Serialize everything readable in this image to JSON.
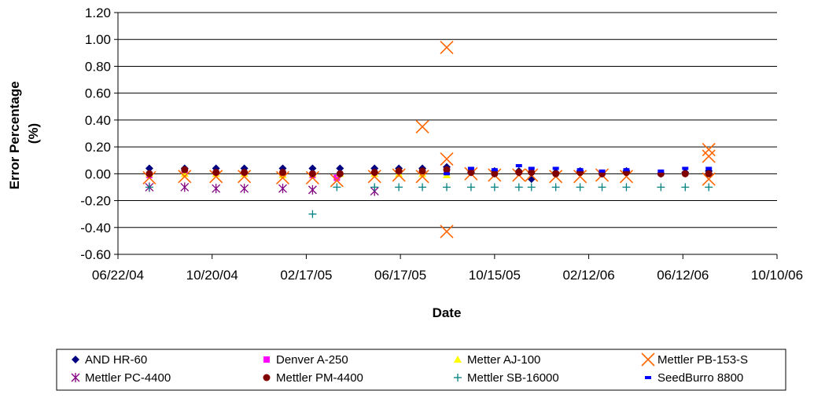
{
  "chart_data": {
    "type": "scatter",
    "title": "",
    "xlabel": "Date",
    "ylabel": "Error Percentage (%)",
    "ylabel_lines": [
      "Error Percentage",
      "(%)"
    ],
    "x_ticks": [
      "06/22/04",
      "10/20/04",
      "02/17/05",
      "06/17/05",
      "10/15/05",
      "02/12/06",
      "06/12/06",
      "10/10/06"
    ],
    "xlim": [
      "06/22/04",
      "10/10/06"
    ],
    "y_ticks": [
      "1.20",
      "1.00",
      "0.80",
      "0.60",
      "0.40",
      "0.20",
      "0.00",
      "-0.20",
      "-0.40",
      "-0.60"
    ],
    "ylim": [
      -0.6,
      1.2
    ],
    "grid": "horizontal",
    "legend_position": "bottom",
    "series": [
      {
        "name": "AND HR-60",
        "marker": "diamond",
        "color": "#000080",
        "points": [
          [
            "08/01/04",
            0.04
          ],
          [
            "09/15/04",
            0.04
          ],
          [
            "10/25/04",
            0.04
          ],
          [
            "11/30/04",
            0.04
          ],
          [
            "01/18/05",
            0.04
          ],
          [
            "02/25/05",
            0.04
          ],
          [
            "04/01/05",
            0.04
          ],
          [
            "05/15/05",
            0.04
          ],
          [
            "06/15/05",
            0.04
          ],
          [
            "07/15/05",
            0.04
          ],
          [
            "08/15/05",
            0.05
          ],
          [
            "09/15/05",
            0.01
          ],
          [
            "10/15/05",
            0.02
          ],
          [
            "11/15/05",
            0.02
          ],
          [
            "12/01/05",
            -0.04
          ],
          [
            "01/01/06",
            0.01
          ],
          [
            "02/01/06",
            0.02
          ],
          [
            "03/01/06",
            0.0
          ],
          [
            "04/01/06",
            0.02
          ],
          [
            "05/15/06",
            0.0
          ],
          [
            "06/15/06",
            0.01
          ],
          [
            "07/15/06",
            0.02
          ]
        ]
      },
      {
        "name": "Denver A-250",
        "marker": "square",
        "color": "#ff00ff",
        "points": [
          [
            "08/01/04",
            -0.01
          ],
          [
            "09/15/04",
            0.02
          ],
          [
            "10/25/04",
            0.0
          ],
          [
            "11/30/04",
            0.0
          ],
          [
            "01/18/05",
            0.0
          ],
          [
            "02/25/05",
            -0.01
          ],
          [
            "03/28/05",
            -0.03
          ]
        ]
      },
      {
        "name": "Metter AJ-100",
        "marker": "triangle",
        "color": "#ffff00",
        "points": [
          [
            "08/01/04",
            0.0
          ],
          [
            "09/15/04",
            0.0
          ],
          [
            "10/25/04",
            0.0
          ],
          [
            "11/30/04",
            0.0
          ],
          [
            "01/18/05",
            -0.01
          ],
          [
            "02/25/05",
            0.0
          ],
          [
            "04/01/05",
            0.0
          ],
          [
            "05/15/05",
            0.0
          ],
          [
            "06/15/05",
            0.0
          ],
          [
            "07/15/05",
            0.0
          ],
          [
            "08/15/05",
            -0.01
          ]
        ]
      },
      {
        "name": "Mettler PB-153-S",
        "marker": "x",
        "color": "#ff6600",
        "points": [
          [
            "08/01/04",
            -0.03
          ],
          [
            "09/15/04",
            -0.02
          ],
          [
            "10/25/04",
            -0.02
          ],
          [
            "11/30/04",
            -0.02
          ],
          [
            "01/18/05",
            -0.03
          ],
          [
            "02/25/05",
            -0.03
          ],
          [
            "03/28/05",
            -0.05
          ],
          [
            "05/15/05",
            -0.02
          ],
          [
            "06/15/05",
            -0.01
          ],
          [
            "07/15/05",
            0.35
          ],
          [
            "07/15/05",
            -0.02
          ],
          [
            "08/15/05",
            0.94
          ],
          [
            "08/15/05",
            0.11
          ],
          [
            "08/15/05",
            -0.43
          ],
          [
            "09/15/05",
            0.0
          ],
          [
            "10/15/05",
            -0.01
          ],
          [
            "11/15/05",
            -0.01
          ],
          [
            "12/01/05",
            -0.01
          ],
          [
            "01/01/06",
            -0.02
          ],
          [
            "02/01/06",
            -0.02
          ],
          [
            "03/01/06",
            -0.01
          ],
          [
            "04/01/06",
            -0.02
          ],
          [
            "07/15/06",
            0.18
          ],
          [
            "07/15/06",
            0.13
          ],
          [
            "07/15/06",
            -0.04
          ]
        ]
      },
      {
        "name": "Mettler PC-4400",
        "marker": "asterisk",
        "color": "#800080",
        "points": [
          [
            "08/01/04",
            -0.1
          ],
          [
            "09/15/04",
            -0.1
          ],
          [
            "10/25/04",
            -0.11
          ],
          [
            "11/30/04",
            -0.11
          ],
          [
            "01/18/05",
            -0.11
          ],
          [
            "02/25/05",
            -0.12
          ],
          [
            "05/15/05",
            -0.13
          ]
        ]
      },
      {
        "name": "Mettler PM-4400",
        "marker": "circle",
        "color": "#800000",
        "points": [
          [
            "08/01/04",
            0.0
          ],
          [
            "09/15/04",
            0.03
          ],
          [
            "10/25/04",
            0.01
          ],
          [
            "11/30/04",
            0.01
          ],
          [
            "01/18/05",
            0.01
          ],
          [
            "02/25/05",
            0.0
          ],
          [
            "04/01/05",
            0.0
          ],
          [
            "05/15/05",
            0.01
          ],
          [
            "06/15/05",
            0.02
          ],
          [
            "07/15/05",
            0.02
          ],
          [
            "08/15/05",
            0.03
          ],
          [
            "09/15/05",
            0.01
          ],
          [
            "10/15/05",
            0.0
          ],
          [
            "11/15/05",
            0.01
          ],
          [
            "12/01/05",
            0.01
          ],
          [
            "01/01/06",
            0.0
          ],
          [
            "02/01/06",
            0.01
          ],
          [
            "03/01/06",
            0.0
          ],
          [
            "04/01/06",
            0.01
          ],
          [
            "05/15/06",
            0.0
          ],
          [
            "06/15/06",
            0.0
          ],
          [
            "07/15/06",
            0.0
          ]
        ]
      },
      {
        "name": "Mettler SB-16000",
        "marker": "plus",
        "color": "#008080",
        "points": [
          [
            "08/01/04",
            -0.1
          ],
          [
            "02/25/05",
            -0.3
          ],
          [
            "03/28/05",
            -0.1
          ],
          [
            "05/15/05",
            -0.1
          ],
          [
            "06/15/05",
            -0.1
          ],
          [
            "07/15/05",
            -0.1
          ],
          [
            "08/15/05",
            -0.1
          ],
          [
            "09/15/05",
            -0.1
          ],
          [
            "10/15/05",
            -0.1
          ],
          [
            "11/15/05",
            -0.1
          ],
          [
            "12/01/05",
            -0.1
          ],
          [
            "01/01/06",
            -0.1
          ],
          [
            "02/01/06",
            -0.1
          ],
          [
            "03/01/06",
            -0.1
          ],
          [
            "04/01/06",
            -0.1
          ],
          [
            "05/15/06",
            -0.1
          ],
          [
            "06/15/06",
            -0.1
          ],
          [
            "07/15/06",
            -0.1
          ]
        ]
      },
      {
        "name": "SeedBurro 8800",
        "marker": "dash",
        "color": "#0000ff",
        "points": [
          [
            "08/15/05",
            0.0
          ],
          [
            "09/15/05",
            0.04
          ],
          [
            "10/15/05",
            0.03
          ],
          [
            "11/15/05",
            0.06
          ],
          [
            "12/01/05",
            0.04
          ],
          [
            "01/01/06",
            0.04
          ],
          [
            "02/01/06",
            0.03
          ],
          [
            "03/01/06",
            0.02
          ],
          [
            "04/01/06",
            0.03
          ],
          [
            "05/15/06",
            0.02
          ],
          [
            "06/15/06",
            0.04
          ],
          [
            "07/15/06",
            0.04
          ]
        ]
      }
    ]
  }
}
